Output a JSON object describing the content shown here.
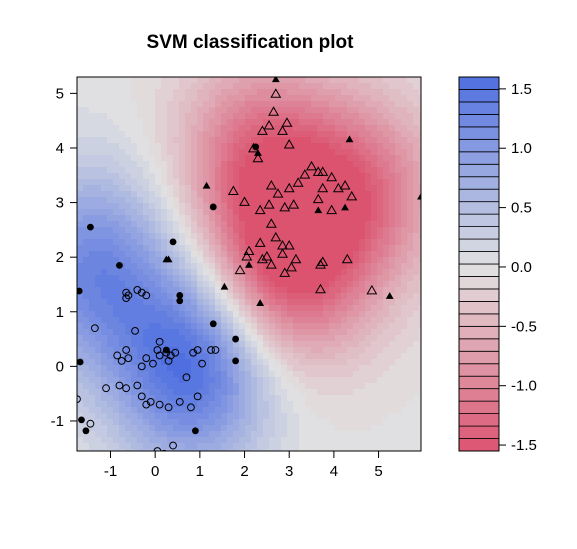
{
  "chart_data": {
    "type": "scatter",
    "title": "SVM classification plot",
    "xlabel": "",
    "ylabel": "",
    "xlim": [
      -1.75,
      5.95
    ],
    "ylim": [
      -1.55,
      5.3
    ],
    "x_ticks": [
      -1,
      0,
      1,
      2,
      3,
      4,
      5
    ],
    "y_ticks": [
      -1,
      0,
      1,
      2,
      3,
      4,
      5
    ],
    "x_tick_labels": [
      "-1",
      "0",
      "1",
      "2",
      "3",
      "4",
      "5"
    ],
    "y_tick_labels": [
      "-1",
      "0",
      "1",
      "2",
      "3",
      "4",
      "5"
    ],
    "grid": false,
    "background_field": {
      "description": "SVM decision value contour fill",
      "centers": [
        {
          "x": 0.85,
          "y": 0.0,
          "value": 1.6
        },
        {
          "x": -1.4,
          "y": 1.8,
          "value": 1.2
        },
        {
          "x": 2.9,
          "y": 1.8,
          "value": -1.5
        },
        {
          "x": 2.3,
          "y": 3.9,
          "value": -1.1
        },
        {
          "x": 4.6,
          "y": 3.2,
          "value": -1.1
        }
      ]
    },
    "legend": {
      "position": "right",
      "ticks": [
        1.5,
        1.0,
        0.5,
        0.0,
        -0.5,
        -1.0,
        -1.5
      ],
      "tick_labels": [
        "1.5",
        "1.0",
        "0.5",
        "0.0",
        "-0.5",
        "-1.0",
        "-1.5"
      ],
      "range": [
        -1.55,
        1.6
      ],
      "bands": 30,
      "color_high": "#4f6fe0",
      "color_mid": "#e2e2e2",
      "color_low": "#dc5370"
    },
    "series": [
      {
        "marker": "open-circle",
        "points": [
          [
            -0.65,
            1.35
          ],
          [
            -0.6,
            1.3
          ],
          [
            -0.65,
            1.25
          ],
          [
            -0.4,
            1.4
          ],
          [
            -0.3,
            1.35
          ],
          [
            -0.2,
            1.3
          ],
          [
            -1.35,
            0.7
          ],
          [
            -0.85,
            0.2
          ],
          [
            -0.65,
            0.3
          ],
          [
            -0.6,
            0.15
          ],
          [
            -0.45,
            0.65
          ],
          [
            -0.75,
            0.1
          ],
          [
            -0.3,
            0.0
          ],
          [
            -0.2,
            0.15
          ],
          [
            -0.05,
            0.05
          ],
          [
            0.1,
            0.45
          ],
          [
            0.05,
            0.3
          ],
          [
            0.1,
            0.2
          ],
          [
            0.25,
            0.25
          ],
          [
            0.35,
            0.2
          ],
          [
            0.3,
            0.1
          ],
          [
            0.45,
            0.25
          ],
          [
            0.85,
            0.25
          ],
          [
            0.95,
            0.3
          ],
          [
            1.25,
            0.3
          ],
          [
            1.05,
            0.05
          ],
          [
            1.35,
            0.3
          ],
          [
            -1.1,
            -0.4
          ],
          [
            -0.8,
            -0.35
          ],
          [
            -0.65,
            -0.4
          ],
          [
            -0.4,
            -0.35
          ],
          [
            -0.3,
            -0.55
          ],
          [
            -0.2,
            -0.7
          ],
          [
            -0.1,
            -0.65
          ],
          [
            0.1,
            -0.7
          ],
          [
            0.3,
            -0.75
          ],
          [
            0.55,
            -0.65
          ],
          [
            0.8,
            -0.75
          ],
          [
            0.95,
            -0.55
          ],
          [
            -1.75,
            -0.6
          ],
          [
            0.05,
            -1.55
          ],
          [
            0.2,
            -1.6
          ],
          [
            0.4,
            -1.45
          ],
          [
            0.7,
            -0.2
          ],
          [
            -1.45,
            -1.05
          ]
        ]
      },
      {
        "marker": "filled-circle",
        "points": [
          [
            -1.45,
            2.55
          ],
          [
            -1.7,
            1.38
          ],
          [
            -1.68,
            0.08
          ],
          [
            -1.65,
            -0.98
          ],
          [
            -1.55,
            -1.18
          ],
          [
            -0.8,
            1.85
          ],
          [
            0.4,
            2.28
          ],
          [
            0.55,
            1.3
          ],
          [
            0.55,
            1.2
          ],
          [
            1.3,
            2.92
          ],
          [
            1.3,
            0.78
          ],
          [
            1.8,
            0.5
          ],
          [
            1.8,
            0.1
          ],
          [
            0.9,
            -1.18
          ],
          [
            2.25,
            4.02
          ],
          [
            0.25,
            0.3
          ]
        ]
      },
      {
        "marker": "open-triangle",
        "points": [
          [
            2.7,
            4.98
          ],
          [
            2.4,
            4.3
          ],
          [
            2.55,
            4.4
          ],
          [
            2.85,
            4.3
          ],
          [
            2.95,
            4.45
          ],
          [
            2.65,
            4.65
          ],
          [
            2.2,
            3.98
          ],
          [
            2.3,
            3.8
          ],
          [
            3.0,
            4.05
          ],
          [
            3.5,
            3.65
          ],
          [
            3.65,
            3.55
          ],
          [
            3.75,
            3.55
          ],
          [
            3.35,
            3.5
          ],
          [
            3.75,
            3.25
          ],
          [
            3.95,
            3.45
          ],
          [
            4.1,
            3.25
          ],
          [
            4.25,
            3.3
          ],
          [
            4.4,
            3.1
          ],
          [
            3.2,
            3.35
          ],
          [
            3.0,
            3.25
          ],
          [
            2.6,
            3.3
          ],
          [
            2.75,
            3.15
          ],
          [
            2.55,
            2.95
          ],
          [
            2.35,
            2.85
          ],
          [
            2.9,
            2.9
          ],
          [
            3.1,
            2.95
          ],
          [
            3.65,
            3.05
          ],
          [
            3.95,
            2.85
          ],
          [
            2.6,
            2.6
          ],
          [
            2.7,
            2.35
          ],
          [
            2.35,
            2.25
          ],
          [
            2.85,
            2.2
          ],
          [
            3.0,
            2.2
          ],
          [
            2.1,
            2.1
          ],
          [
            2.85,
            2.05
          ],
          [
            3.15,
            1.95
          ],
          [
            2.6,
            1.85
          ],
          [
            3.75,
            1.9
          ],
          [
            2.05,
            2.0
          ],
          [
            4.3,
            1.95
          ],
          [
            1.75,
            3.2
          ],
          [
            2.0,
            3.0
          ],
          [
            1.9,
            1.75
          ],
          [
            3.7,
            1.85
          ],
          [
            3.05,
            1.8
          ],
          [
            2.9,
            1.7
          ],
          [
            3.7,
            1.4
          ],
          [
            4.85,
            1.38
          ],
          [
            2.5,
            2.0
          ],
          [
            2.4,
            1.95
          ]
        ]
      },
      {
        "marker": "filled-triangle",
        "points": [
          [
            2.7,
            5.25
          ],
          [
            4.35,
            4.15
          ],
          [
            2.3,
            3.9
          ],
          [
            1.15,
            3.3
          ],
          [
            0.3,
            1.95
          ],
          [
            0.25,
            1.95
          ],
          [
            3.65,
            2.85
          ],
          [
            4.25,
            2.9
          ],
          [
            1.55,
            1.45
          ],
          [
            2.35,
            1.15
          ],
          [
            5.25,
            1.28
          ],
          [
            5.95,
            3.1
          ],
          [
            2.1,
            1.85
          ]
        ]
      }
    ]
  }
}
